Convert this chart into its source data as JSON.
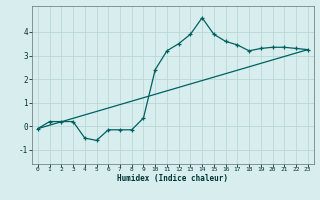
{
  "xlabel": "Humidex (Indice chaleur)",
  "background_color": "#d8eeee",
  "grid_color": "#b8d8d8",
  "line_color": "#006060",
  "xlim": [
    -0.5,
    23.5
  ],
  "ylim": [
    -1.6,
    5.1
  ],
  "yticks": [
    -1,
    0,
    1,
    2,
    3,
    4
  ],
  "xticks": [
    0,
    1,
    2,
    3,
    4,
    5,
    6,
    7,
    8,
    9,
    10,
    11,
    12,
    13,
    14,
    15,
    16,
    17,
    18,
    19,
    20,
    21,
    22,
    23
  ],
  "series1_x": [
    0,
    1,
    2,
    3,
    4,
    5,
    6,
    7,
    8,
    9,
    10,
    11,
    12,
    13,
    14,
    15,
    16,
    17,
    18,
    19,
    20,
    21,
    22,
    23
  ],
  "series1_y": [
    -0.1,
    0.2,
    0.2,
    0.2,
    -0.5,
    -0.6,
    -0.15,
    -0.15,
    -0.15,
    0.35,
    2.4,
    3.2,
    3.5,
    3.9,
    4.6,
    3.9,
    3.6,
    3.45,
    3.2,
    3.3,
    3.35,
    3.35,
    3.3,
    3.25
  ],
  "series2_x": [
    0,
    23
  ],
  "series2_y": [
    -0.1,
    3.25
  ],
  "marker": "+"
}
